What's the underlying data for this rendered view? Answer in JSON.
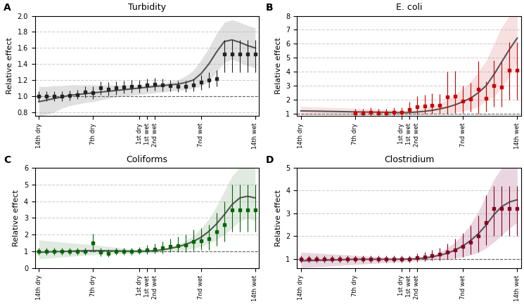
{
  "chart_data": [
    {
      "type": "line",
      "title": "Turbidity",
      "annotation": "A",
      "ylabel": "Relative effect",
      "x": [
        -14,
        -13,
        -12,
        -11,
        -10,
        -9,
        -8,
        -7,
        -6,
        -5,
        -4,
        -3,
        -2,
        -1,
        0,
        1,
        2,
        3,
        4,
        5,
        6,
        7,
        8,
        9,
        10,
        11,
        12,
        13,
        14
      ],
      "values": [
        0.93,
        0.95,
        0.97,
        0.99,
        1.01,
        1.02,
        1.03,
        1.04,
        1.05,
        1.06,
        1.07,
        1.08,
        1.09,
        1.1,
        1.11,
        1.12,
        1.13,
        1.14,
        1.15,
        1.17,
        1.2,
        1.28,
        1.4,
        1.55,
        1.68,
        1.7,
        1.67,
        1.63,
        1.6
      ],
      "color": "#555555",
      "ci_upper": [
        1.12,
        1.12,
        1.13,
        1.13,
        1.14,
        1.14,
        1.14,
        1.14,
        1.14,
        1.14,
        1.14,
        1.14,
        1.14,
        1.14,
        1.14,
        1.15,
        1.16,
        1.18,
        1.2,
        1.25,
        1.32,
        1.45,
        1.6,
        1.78,
        1.92,
        1.95,
        1.92,
        1.88,
        1.85
      ],
      "ci_lower": [
        0.75,
        0.77,
        0.8,
        0.85,
        0.88,
        0.9,
        0.92,
        0.93,
        0.95,
        0.97,
        0.99,
        1.0,
        1.01,
        1.02,
        1.03,
        1.04,
        1.05,
        1.06,
        1.07,
        1.08,
        1.1,
        1.12,
        1.18,
        1.3,
        1.42,
        1.46,
        1.42,
        1.38,
        1.35
      ],
      "ci_color": "#cccccc",
      "points": {
        "type": "scatter",
        "marker": "square",
        "color": "#222222",
        "x": [
          -14,
          -13,
          -12,
          -11,
          -10,
          -9,
          -8,
          -7,
          -6,
          -5,
          -4,
          -3,
          -2,
          -1,
          0,
          1,
          2,
          3,
          4,
          5,
          6,
          7,
          8,
          9,
          10,
          11,
          12,
          13,
          14
        ],
        "values": [
          1.0,
          1.0,
          1.0,
          1.0,
          1.01,
          1.02,
          1.05,
          1.04,
          1.1,
          1.09,
          1.1,
          1.11,
          1.12,
          1.12,
          1.14,
          1.15,
          1.14,
          1.13,
          1.12,
          1.12,
          1.14,
          1.17,
          1.2,
          1.22,
          1.52,
          1.52,
          1.52,
          1.52,
          1.52
        ],
        "error_lower": [
          0.06,
          0.06,
          0.06,
          0.06,
          0.06,
          0.06,
          0.07,
          0.08,
          0.08,
          0.08,
          0.08,
          0.08,
          0.08,
          0.08,
          0.08,
          0.08,
          0.08,
          0.07,
          0.07,
          0.07,
          0.08,
          0.09,
          0.1,
          0.1,
          0.22,
          0.22,
          0.22,
          0.22,
          0.22
        ],
        "error_upper": [
          0.06,
          0.06,
          0.06,
          0.06,
          0.06,
          0.06,
          0.07,
          0.08,
          0.08,
          0.08,
          0.08,
          0.08,
          0.08,
          0.08,
          0.08,
          0.08,
          0.08,
          0.07,
          0.07,
          0.07,
          0.08,
          0.09,
          0.1,
          0.1,
          0.18,
          0.18,
          0.18,
          0.18,
          0.18
        ]
      },
      "reference_line": {
        "y": 1.0,
        "color": "#666666",
        "line_style": "dashed"
      },
      "xlim": [
        -14.5,
        14.5
      ],
      "xticks": [
        {
          "value": -14,
          "label": "14th dry"
        },
        {
          "value": -7,
          "label": "7th dry"
        },
        {
          "value": -1,
          "label": "1st dry"
        },
        {
          "value": 0,
          "label": "1st wet"
        },
        {
          "value": 1,
          "label": "2nd wet"
        },
        {
          "value": 7,
          "label": "7nd wet"
        },
        {
          "value": 14,
          "label": "14th wet"
        }
      ],
      "ylim": [
        0.75,
        2.0
      ],
      "yticks": [
        0.8,
        {
          "value": 1.0,
          "label": "1.0"
        },
        1.2,
        1.4,
        1.6,
        1.8,
        {
          "value": 2.0,
          "label": "2.0"
        }
      ],
      "grid": "y"
    },
    {
      "type": "line",
      "title": "E. coli",
      "annotation": "B",
      "ylabel": "Relative effect",
      "x": [
        -14,
        -13,
        -12,
        -11,
        -10,
        -9,
        -8,
        -7,
        -6,
        -5,
        -4,
        -3,
        -2,
        -1,
        0,
        1,
        2,
        3,
        4,
        5,
        6,
        7,
        8,
        9,
        10,
        11,
        12,
        13,
        14
      ],
      "values": [
        1.18,
        1.17,
        1.16,
        1.15,
        1.14,
        1.13,
        1.12,
        1.11,
        1.1,
        1.09,
        1.09,
        1.08,
        1.07,
        1.06,
        1.06,
        1.1,
        1.15,
        1.22,
        1.32,
        1.45,
        1.62,
        1.85,
        2.1,
        2.5,
        3.0,
        3.8,
        4.7,
        5.6,
        6.4
      ],
      "color": "#555555",
      "ci_upper": [
        1.5,
        1.48,
        1.46,
        1.44,
        1.42,
        1.4,
        1.38,
        1.36,
        1.34,
        1.32,
        1.3,
        1.28,
        1.26,
        1.24,
        1.22,
        1.3,
        1.4,
        1.55,
        1.75,
        2.0,
        2.35,
        2.8,
        3.3,
        4.0,
        4.8,
        6.0,
        7.2,
        8.0,
        8.0
      ],
      "ci_lower": [
        0.9,
        0.9,
        0.9,
        0.9,
        0.9,
        0.9,
        0.9,
        0.9,
        0.9,
        0.9,
        0.9,
        0.9,
        0.9,
        0.9,
        0.9,
        0.9,
        0.92,
        0.95,
        0.98,
        1.02,
        1.08,
        1.15,
        1.3,
        1.5,
        1.9,
        2.2,
        2.8,
        3.7,
        4.6
      ],
      "ci_color": "#f5cccc",
      "points": {
        "type": "scatter",
        "marker": "square",
        "color": "#cc0000",
        "x": [
          -7,
          -6,
          -5,
          -4,
          -3,
          -2,
          -1,
          0,
          1,
          2,
          3,
          4,
          5,
          6,
          7,
          8,
          9,
          10,
          11,
          12,
          13,
          14
        ],
        "values": [
          1.05,
          1.05,
          1.08,
          1.05,
          1.05,
          1.08,
          1.1,
          1.28,
          1.5,
          1.55,
          1.6,
          1.6,
          2.2,
          2.25,
          1.9,
          2.05,
          2.75,
          2.1,
          3.0,
          2.9,
          4.1,
          4.1
        ],
        "error_lower": [
          0.2,
          0.2,
          0.25,
          0.2,
          0.2,
          0.25,
          0.25,
          0.35,
          0.55,
          0.55,
          0.6,
          0.55,
          1.2,
          1.2,
          0.85,
          0.9,
          1.75,
          0.95,
          1.5,
          1.4,
          2.1,
          2.1
        ],
        "error_upper": [
          0.3,
          0.3,
          0.35,
          0.3,
          0.3,
          0.35,
          0.35,
          0.55,
          0.75,
          0.8,
          0.85,
          0.8,
          1.8,
          1.8,
          1.1,
          1.15,
          2.0,
          1.2,
          1.8,
          1.8,
          2.0,
          2.0
        ]
      },
      "reference_line": {
        "y": 1.0,
        "color": "#666666",
        "line_style": "dashed"
      },
      "xlim": [
        -14.5,
        14.5
      ],
      "xticks": [
        {
          "value": -14,
          "label": "14th dry"
        },
        {
          "value": -7,
          "label": "7th dry"
        },
        {
          "value": -1,
          "label": "1st dry"
        },
        {
          "value": 0,
          "label": "1st wet"
        },
        {
          "value": 1,
          "label": "2nd wet"
        },
        {
          "value": 7,
          "label": "7nd wet"
        },
        {
          "value": 14,
          "label": "14th wet"
        }
      ],
      "ylim": [
        0.8,
        8.0
      ],
      "yticks": [
        1,
        2,
        3,
        4,
        5,
        6,
        7,
        8
      ],
      "grid": "y"
    },
    {
      "type": "line",
      "title": "Coliforms",
      "annotation": "C",
      "ylabel": "Relative effect",
      "x": [
        -14,
        -13,
        -12,
        -11,
        -10,
        -9,
        -8,
        -7,
        -6,
        -5,
        -4,
        -3,
        -2,
        -1,
        0,
        1,
        2,
        3,
        4,
        5,
        6,
        7,
        8,
        9,
        10,
        11,
        12,
        13,
        14
      ],
      "values": [
        0.95,
        0.97,
        0.99,
        1.0,
        1.01,
        1.03,
        1.04,
        1.05,
        1.05,
        1.04,
        1.03,
        1.02,
        1.01,
        1.01,
        1.02,
        1.05,
        1.1,
        1.18,
        1.28,
        1.42,
        1.6,
        1.85,
        2.2,
        2.65,
        3.2,
        3.8,
        4.2,
        4.3,
        4.2
      ],
      "color": "#555555",
      "ci_upper": [
        1.7,
        1.65,
        1.6,
        1.56,
        1.52,
        1.48,
        1.44,
        1.4,
        1.35,
        1.3,
        1.25,
        1.2,
        1.15,
        1.12,
        1.1,
        1.12,
        1.18,
        1.28,
        1.45,
        1.65,
        1.95,
        2.4,
        2.95,
        3.7,
        4.6,
        5.5,
        6.0,
        6.0,
        6.0
      ],
      "ci_lower": [
        0.55,
        0.58,
        0.62,
        0.66,
        0.7,
        0.74,
        0.78,
        0.8,
        0.82,
        0.84,
        0.85,
        0.86,
        0.87,
        0.88,
        0.9,
        0.92,
        0.95,
        1.0,
        1.05,
        1.1,
        1.18,
        1.3,
        1.48,
        1.7,
        2.0,
        2.4,
        2.8,
        3.0,
        2.8
      ],
      "ci_color": "#ccddcc",
      "points": {
        "type": "scatter",
        "marker": "square",
        "color": "#006600",
        "x": [
          -14,
          -13,
          -12,
          -11,
          -10,
          -9,
          -8,
          -7,
          -6,
          -5,
          -4,
          -3,
          -2,
          -1,
          0,
          1,
          2,
          3,
          4,
          5,
          6,
          7,
          8,
          9,
          10,
          11,
          12,
          13,
          14
        ],
        "values": [
          1.0,
          1.0,
          1.0,
          1.0,
          1.0,
          1.0,
          1.0,
          1.5,
          0.95,
          0.9,
          1.0,
          1.0,
          1.0,
          1.05,
          1.1,
          1.15,
          1.2,
          1.3,
          1.35,
          1.4,
          1.6,
          1.65,
          1.75,
          2.2,
          2.6,
          3.5,
          3.5,
          3.5,
          3.5
        ],
        "error_lower": [
          0.2,
          0.2,
          0.2,
          0.2,
          0.2,
          0.2,
          0.2,
          0.55,
          0.25,
          0.22,
          0.22,
          0.22,
          0.22,
          0.22,
          0.25,
          0.28,
          0.3,
          0.35,
          0.38,
          0.42,
          0.55,
          0.55,
          0.65,
          0.85,
          1.0,
          1.3,
          1.3,
          1.3,
          1.3
        ],
        "error_upper": [
          0.2,
          0.2,
          0.2,
          0.2,
          0.2,
          0.2,
          0.2,
          0.55,
          0.25,
          0.22,
          0.22,
          0.22,
          0.22,
          0.22,
          0.28,
          0.32,
          0.38,
          0.45,
          0.52,
          0.6,
          0.7,
          0.75,
          0.85,
          1.1,
          1.4,
          1.5,
          1.5,
          1.5,
          1.5
        ]
      },
      "reference_line": {
        "y": 1.0,
        "color": "#666666",
        "line_style": "dashed"
      },
      "xlim": [
        -14.5,
        14.5
      ],
      "xticks": [
        {
          "value": -14,
          "label": "14th dry"
        },
        {
          "value": -7,
          "label": "7th dry"
        },
        {
          "value": -1,
          "label": "1st dry"
        },
        {
          "value": 0,
          "label": "1st wet"
        },
        {
          "value": 1,
          "label": "2nd wet"
        },
        {
          "value": 7,
          "label": "7nd wet"
        },
        {
          "value": 14,
          "label": "14th wet"
        }
      ],
      "ylim": [
        0,
        6.0
      ],
      "yticks": [
        0,
        1,
        2,
        3,
        4,
        5,
        6
      ],
      "grid": "y"
    },
    {
      "type": "line",
      "title": "Clostridium",
      "annotation": "D",
      "ylabel": "Relative effect",
      "x": [
        -14,
        -13,
        -12,
        -11,
        -10,
        -9,
        -8,
        -7,
        -6,
        -5,
        -4,
        -3,
        -2,
        -1,
        0,
        1,
        2,
        3,
        4,
        5,
        6,
        7,
        8,
        9,
        10,
        11,
        12,
        13,
        14
      ],
      "values": [
        0.92,
        0.93,
        0.94,
        0.95,
        0.96,
        0.97,
        0.98,
        0.99,
        0.99,
        0.99,
        0.99,
        0.99,
        0.99,
        1.0,
        1.0,
        1.02,
        1.05,
        1.1,
        1.17,
        1.26,
        1.4,
        1.58,
        1.82,
        2.12,
        2.5,
        2.95,
        3.3,
        3.5,
        3.6
      ],
      "color": "#555555",
      "ci_upper": [
        1.3,
        1.28,
        1.26,
        1.24,
        1.22,
        1.2,
        1.18,
        1.16,
        1.14,
        1.12,
        1.1,
        1.08,
        1.06,
        1.04,
        1.03,
        1.05,
        1.1,
        1.18,
        1.3,
        1.5,
        1.75,
        2.1,
        2.55,
        3.1,
        3.8,
        4.5,
        5.0,
        5.0,
        5.0
      ],
      "ci_lower": [
        0.62,
        0.64,
        0.66,
        0.68,
        0.7,
        0.72,
        0.74,
        0.76,
        0.78,
        0.8,
        0.82,
        0.84,
        0.86,
        0.88,
        0.9,
        0.92,
        0.94,
        0.96,
        0.98,
        1.0,
        1.05,
        1.1,
        1.18,
        1.3,
        1.48,
        1.75,
        2.05,
        2.35,
        2.6
      ],
      "ci_color": "#ddbbcc",
      "points": {
        "type": "scatter",
        "marker": "square",
        "color": "#880022",
        "x": [
          -14,
          -13,
          -12,
          -11,
          -10,
          -9,
          -8,
          -7,
          -6,
          -5,
          -4,
          -3,
          -2,
          -1,
          0,
          1,
          2,
          3,
          4,
          5,
          6,
          7,
          8,
          9,
          10,
          11,
          12,
          13,
          14
        ],
        "values": [
          1.0,
          1.0,
          1.0,
          1.0,
          1.0,
          1.0,
          1.0,
          1.0,
          1.0,
          1.0,
          1.0,
          1.0,
          1.0,
          1.0,
          1.0,
          1.05,
          1.1,
          1.15,
          1.2,
          1.3,
          1.4,
          1.55,
          1.75,
          2.0,
          2.6,
          3.2,
          3.2,
          3.2,
          3.2
        ],
        "error_lower": [
          0.15,
          0.15,
          0.15,
          0.15,
          0.15,
          0.15,
          0.15,
          0.15,
          0.15,
          0.15,
          0.15,
          0.15,
          0.15,
          0.15,
          0.15,
          0.18,
          0.2,
          0.22,
          0.25,
          0.3,
          0.38,
          0.45,
          0.55,
          0.68,
          1.0,
          1.2,
          1.2,
          1.2,
          1.2
        ],
        "error_upper": [
          0.15,
          0.15,
          0.15,
          0.15,
          0.15,
          0.15,
          0.15,
          0.15,
          0.15,
          0.15,
          0.15,
          0.15,
          0.15,
          0.15,
          0.15,
          0.2,
          0.22,
          0.25,
          0.3,
          0.38,
          0.48,
          0.58,
          0.72,
          0.9,
          1.2,
          1.0,
          1.0,
          1.0,
          1.0
        ]
      },
      "reference_line": {
        "y": 1.0,
        "color": "#666666",
        "line_style": "dashed"
      },
      "xlim": [
        -14.5,
        14.5
      ],
      "xticks": [
        {
          "value": -14,
          "label": "14th dry"
        },
        {
          "value": -7,
          "label": "7th dry"
        },
        {
          "value": -1,
          "label": "1st dry"
        },
        {
          "value": 0,
          "label": "1st wet"
        },
        {
          "value": 1,
          "label": "2nd wet"
        },
        {
          "value": 7,
          "label": "7nd wet"
        },
        {
          "value": 14,
          "label": "14th wet"
        }
      ],
      "ylim": [
        0.6,
        5.0
      ],
      "yticks": [
        1,
        2,
        3,
        4,
        5
      ],
      "grid": "y"
    }
  ]
}
